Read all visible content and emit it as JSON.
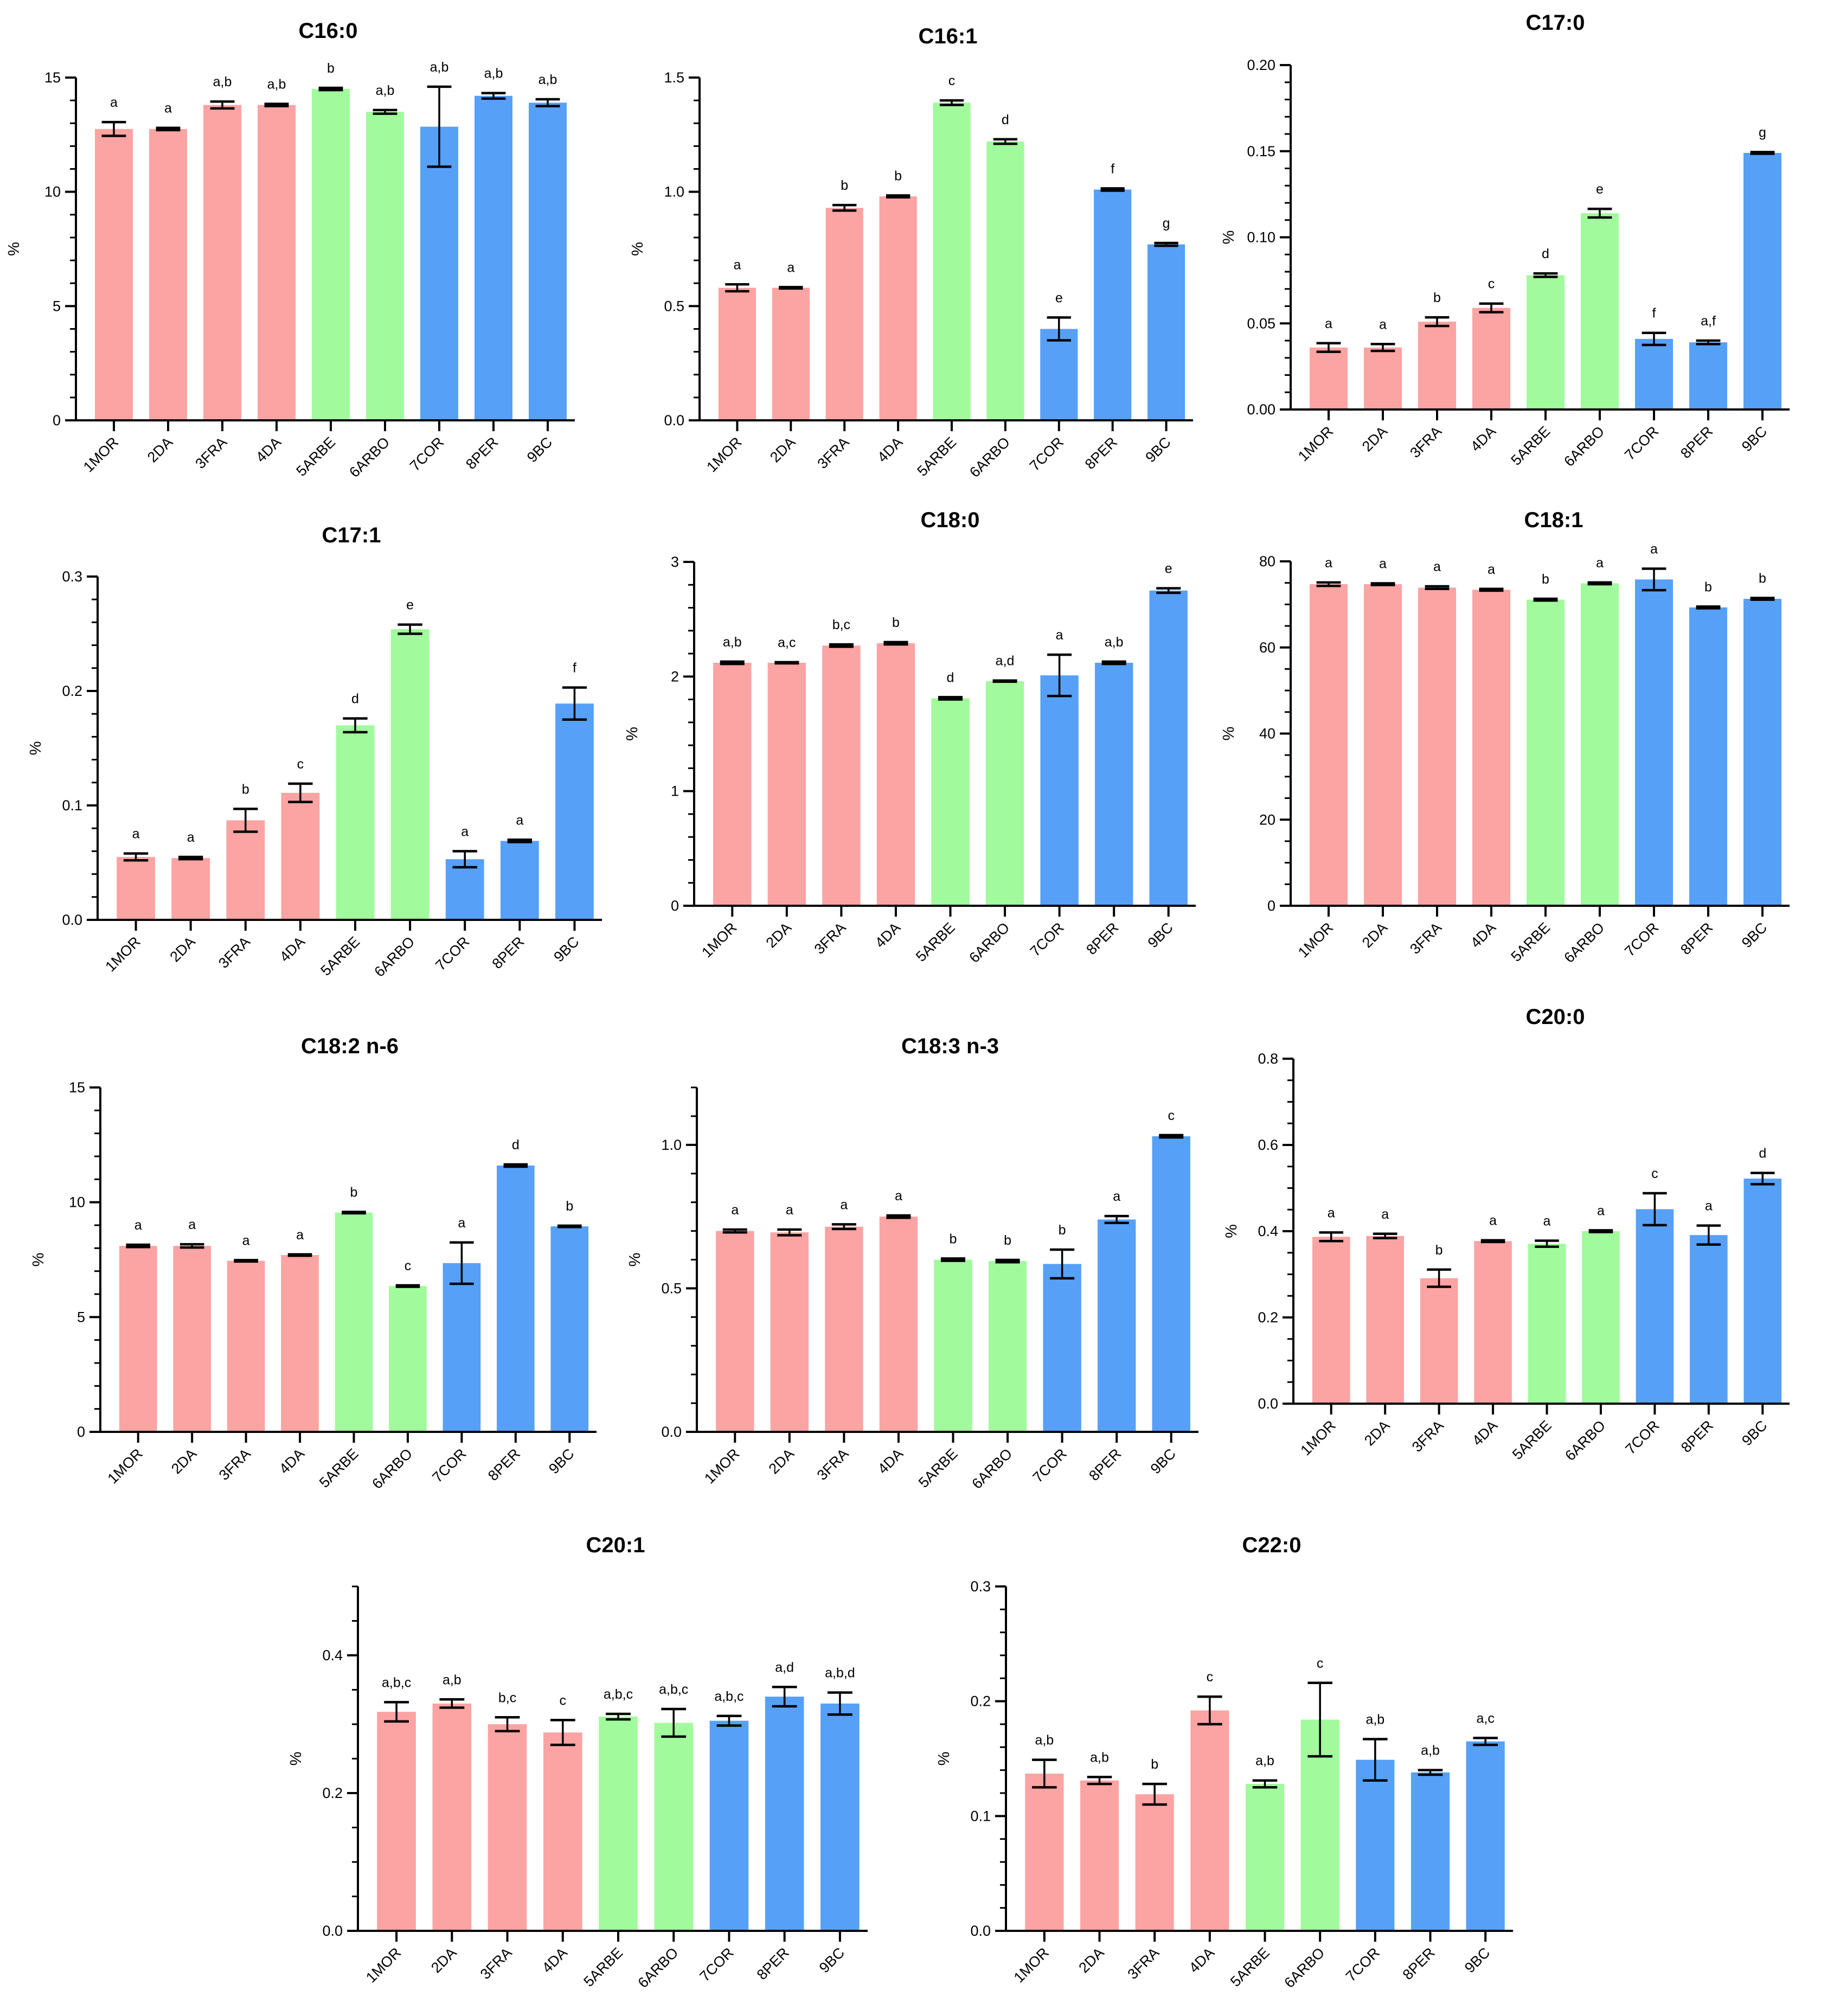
{
  "categories": [
    "1MOR",
    "2DA",
    "3FRA",
    "4DA",
    "5ARBE",
    "6ARBO",
    "7COR",
    "8PER",
    "9BC"
  ],
  "colors": {
    "bar_colors": [
      "#FCA3A3",
      "#FCA3A3",
      "#FCA3A3",
      "#FCA3A3",
      "#A1FB9C",
      "#A1FB9C",
      "#56A0F8",
      "#56A0F8",
      "#56A0F8"
    ],
    "axis": "#000000"
  },
  "chart_data": [
    {
      "type": "bar",
      "title": "C16:0",
      "ylabel": "%",
      "ylim": [
        0,
        15
      ],
      "yticks": [
        0,
        5,
        10,
        15
      ],
      "yticklabels": [
        "0",
        "5",
        "10",
        "15"
      ],
      "minor_ticks": 5,
      "categories": [
        "1MOR",
        "2DA",
        "3FRA",
        "4DA",
        "5ARBE",
        "6ARBO",
        "7COR",
        "8PER",
        "9BC"
      ],
      "values": [
        12.75,
        12.75,
        13.8,
        13.8,
        14.5,
        13.5,
        12.85,
        14.2,
        13.9
      ],
      "errors": [
        0.3,
        0.05,
        0.15,
        0.05,
        0.05,
        0.08,
        1.75,
        0.12,
        0.15
      ],
      "letters": [
        "a",
        "a",
        "a,b",
        "a,b",
        "b",
        "a,b",
        "a,b",
        "a,b",
        "a,b"
      ]
    },
    {
      "type": "bar",
      "title": "C16:1",
      "ylabel": "%",
      "ylim": [
        0,
        1.5
      ],
      "yticks": [
        0,
        0.5,
        1.0,
        1.5
      ],
      "yticklabels": [
        "0.0",
        "0.5",
        "1.0",
        "1.5"
      ],
      "minor_ticks": 5,
      "categories": [
        "1MOR",
        "2DA",
        "3FRA",
        "4DA",
        "5ARBE",
        "6ARBO",
        "7COR",
        "8PER",
        "9BC"
      ],
      "values": [
        0.58,
        0.58,
        0.93,
        0.98,
        1.39,
        1.22,
        0.4,
        1.01,
        0.77
      ],
      "errors": [
        0.015,
        0.003,
        0.012,
        0.004,
        0.01,
        0.01,
        0.05,
        0.005,
        0.006
      ],
      "letters": [
        "a",
        "a",
        "b",
        "b",
        "c",
        "d",
        "e",
        "f",
        "g"
      ]
    },
    {
      "type": "bar",
      "title": "C17:0",
      "ylabel": "%",
      "ylim": [
        0,
        0.2
      ],
      "yticks": [
        0,
        0.05,
        0.1,
        0.15,
        0.2
      ],
      "yticklabels": [
        "0.00",
        "0.05",
        "0.10",
        "0.15",
        "0.20"
      ],
      "minor_ticks": 5,
      "categories": [
        "1MOR",
        "2DA",
        "3FRA",
        "4DA",
        "5ARBE",
        "6ARBO",
        "7COR",
        "8PER",
        "9BC"
      ],
      "values": [
        0.036,
        0.036,
        0.051,
        0.059,
        0.078,
        0.114,
        0.041,
        0.039,
        0.149
      ],
      "errors": [
        0.0025,
        0.002,
        0.0025,
        0.0025,
        0.001,
        0.0025,
        0.0035,
        0.001,
        0.0005
      ],
      "letters": [
        "a",
        "a",
        "b",
        "c",
        "d",
        "e",
        "f",
        "a,f",
        "g"
      ]
    },
    {
      "type": "bar",
      "title": "C17:1",
      "ylabel": "%",
      "ylim": [
        0,
        0.3
      ],
      "yticks": [
        0,
        0.1,
        0.2,
        0.3
      ],
      "yticklabels": [
        "0.0",
        "0.1",
        "0.2",
        "0.3"
      ],
      "minor_ticks": 5,
      "categories": [
        "1MOR",
        "2DA",
        "3FRA",
        "4DA",
        "5ARBE",
        "6ARBO",
        "7COR",
        "8PER",
        "9BC"
      ],
      "values": [
        0.055,
        0.054,
        0.087,
        0.111,
        0.17,
        0.254,
        0.053,
        0.069,
        0.189
      ],
      "errors": [
        0.003,
        0.001,
        0.01,
        0.008,
        0.006,
        0.004,
        0.007,
        0.001,
        0.014
      ],
      "letters": [
        "a",
        "a",
        "b",
        "c",
        "d",
        "e",
        "a",
        "a",
        "f"
      ]
    },
    {
      "type": "bar",
      "title": "C18:0",
      "ylabel": "%",
      "ylim": [
        0,
        3
      ],
      "yticks": [
        0,
        1,
        2,
        3
      ],
      "yticklabels": [
        "0",
        "1",
        "2",
        "3"
      ],
      "minor_ticks": 5,
      "categories": [
        "1MOR",
        "2DA",
        "3FRA",
        "4DA",
        "5ARBE",
        "6ARBO",
        "7COR",
        "8PER",
        "9BC"
      ],
      "values": [
        2.12,
        2.12,
        2.27,
        2.29,
        1.81,
        1.96,
        2.01,
        2.12,
        2.75
      ],
      "errors": [
        0.01,
        0.005,
        0.01,
        0.01,
        0.01,
        0.005,
        0.18,
        0.01,
        0.02
      ],
      "letters": [
        "a,b",
        "a,c",
        "b,c",
        "b",
        "d",
        "a,d",
        "a",
        "a,b",
        "e"
      ]
    },
    {
      "type": "bar",
      "title": "C18:1",
      "ylabel": "%",
      "ylim": [
        0,
        80
      ],
      "yticks": [
        0,
        20,
        40,
        60,
        80
      ],
      "yticklabels": [
        "0",
        "20",
        "40",
        "60",
        "80"
      ],
      "minor_ticks": 4,
      "categories": [
        "1MOR",
        "2DA",
        "3FRA",
        "4DA",
        "5ARBE",
        "6ARBO",
        "7COR",
        "8PER",
        "9BC"
      ],
      "values": [
        74.7,
        74.7,
        73.9,
        73.4,
        71.1,
        74.9,
        75.8,
        69.3,
        71.3
      ],
      "errors": [
        0.4,
        0.2,
        0.3,
        0.2,
        0.2,
        0.2,
        2.5,
        0.2,
        0.2
      ],
      "letters": [
        "a",
        "a",
        "a",
        "a",
        "b",
        "a",
        "a",
        "b",
        "b"
      ]
    },
    {
      "type": "bar",
      "title": "C18:2 n-6",
      "ylabel": "%",
      "ylim": [
        0,
        15
      ],
      "yticks": [
        0,
        5,
        10,
        15
      ],
      "yticklabels": [
        "0",
        "5",
        "10",
        "15"
      ],
      "minor_ticks": 5,
      "categories": [
        "1MOR",
        "2DA",
        "3FRA",
        "4DA",
        "5ARBE",
        "6ARBO",
        "7COR",
        "8PER",
        "9BC"
      ],
      "values": [
        8.1,
        8.1,
        7.45,
        7.7,
        9.55,
        6.35,
        7.35,
        11.6,
        8.95
      ],
      "errors": [
        0.05,
        0.07,
        0.03,
        0.03,
        0.03,
        0.03,
        0.9,
        0.05,
        0.03
      ],
      "letters": [
        "a",
        "a",
        "a",
        "a",
        "b",
        "c",
        "a",
        "d",
        "b"
      ]
    },
    {
      "type": "bar",
      "title": "C18:3 n-3",
      "ylabel": "%",
      "ylim": [
        0,
        1.2
      ],
      "yticks": [
        0,
        0.5,
        1.0
      ],
      "yticklabels": [
        "0.0",
        "0.5",
        "1.0"
      ],
      "minor_ticks": 5,
      "categories": [
        "1MOR",
        "2DA",
        "3FRA",
        "4DA",
        "5ARBE",
        "6ARBO",
        "7COR",
        "8PER",
        "9BC"
      ],
      "values": [
        0.7,
        0.695,
        0.715,
        0.75,
        0.6,
        0.595,
        0.585,
        0.74,
        1.03
      ],
      "errors": [
        0.005,
        0.01,
        0.008,
        0.004,
        0.004,
        0.004,
        0.05,
        0.012,
        0.004
      ],
      "letters": [
        "a",
        "a",
        "a",
        "a",
        "b",
        "b",
        "b",
        "a",
        "c"
      ]
    },
    {
      "type": "bar",
      "title": "C20:0",
      "ylabel": "%",
      "ylim": [
        0,
        0.8
      ],
      "yticks": [
        0,
        0.2,
        0.4,
        0.6,
        0.8
      ],
      "yticklabels": [
        "0.0",
        "0.2",
        "0.4",
        "0.6",
        "0.8"
      ],
      "minor_ticks": 4,
      "categories": [
        "1MOR",
        "2DA",
        "3FRA",
        "4DA",
        "5ARBE",
        "6ARBO",
        "7COR",
        "8PER",
        "9BC"
      ],
      "values": [
        0.387,
        0.389,
        0.291,
        0.377,
        0.371,
        0.4,
        0.451,
        0.391,
        0.522
      ],
      "errors": [
        0.01,
        0.005,
        0.02,
        0.002,
        0.007,
        0.002,
        0.037,
        0.022,
        0.013
      ],
      "letters": [
        "a",
        "a",
        "b",
        "a",
        "a",
        "a",
        "c",
        "a",
        "d"
      ]
    },
    {
      "type": "bar",
      "title": "C20:1",
      "ylabel": "%",
      "ylim": [
        0,
        0.5
      ],
      "yticks": [
        0,
        0.2,
        0.4
      ],
      "yticklabels": [
        "0.0",
        "0.2",
        "0.4"
      ],
      "minor_ticks": 4,
      "categories": [
        "1MOR",
        "2DA",
        "3FRA",
        "4DA",
        "5ARBE",
        "6ARBO",
        "7COR",
        "8PER",
        "9BC"
      ],
      "values": [
        0.318,
        0.33,
        0.3,
        0.288,
        0.311,
        0.302,
        0.305,
        0.34,
        0.33
      ],
      "errors": [
        0.014,
        0.006,
        0.01,
        0.018,
        0.004,
        0.02,
        0.007,
        0.014,
        0.016
      ],
      "letters": [
        "a,b,c",
        "a,b",
        "b,c",
        "c",
        "a,b,c",
        "a,b,c",
        "a,b,c",
        "a,d",
        "a,b,d"
      ]
    },
    {
      "type": "bar",
      "title": "C22:0",
      "ylabel": "%",
      "ylim": [
        0,
        0.3
      ],
      "yticks": [
        0,
        0.1,
        0.2,
        0.3
      ],
      "yticklabels": [
        "0.0",
        "0.1",
        "0.2",
        "0.3"
      ],
      "minor_ticks": 5,
      "categories": [
        "1MOR",
        "2DA",
        "3FRA",
        "4DA",
        "5ARBE",
        "6ARBO",
        "7COR",
        "8PER",
        "9BC"
      ],
      "values": [
        0.137,
        0.131,
        0.119,
        0.192,
        0.128,
        0.184,
        0.149,
        0.138,
        0.165
      ],
      "errors": [
        0.012,
        0.003,
        0.009,
        0.012,
        0.003,
        0.032,
        0.018,
        0.002,
        0.003
      ],
      "letters": [
        "a,b",
        "a,b",
        "b",
        "c",
        "a,b",
        "c",
        "a,b",
        "a,b",
        "a,c"
      ]
    }
  ]
}
